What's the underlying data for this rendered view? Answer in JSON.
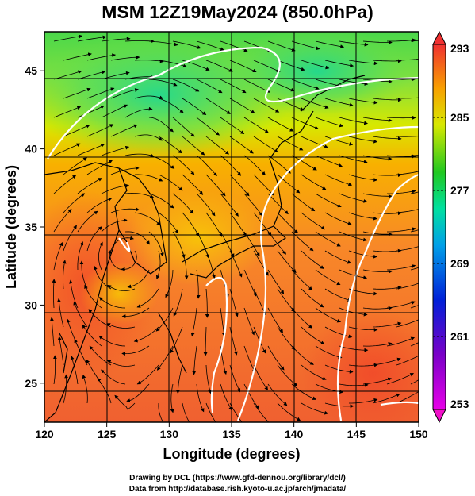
{
  "title": "MSM 12Z19May2024 (850.0hPa)",
  "xaxis": {
    "label": "Longitude (degrees)",
    "ticks": [
      "120",
      "125",
      "130",
      "135",
      "140",
      "145",
      "150"
    ]
  },
  "yaxis": {
    "label": "Latitude  (degrees)",
    "ticks": [
      "25",
      "30",
      "35",
      "40",
      "45"
    ]
  },
  "colorbar": {
    "ticks": [
      "293",
      "285",
      "277",
      "269",
      "261",
      "253"
    ],
    "min": 253,
    "max": 293
  },
  "credits": [
    "Drawing by DCL (https://www.gfd-dennou.org/library/dcl/)",
    "Data from http://database.rish.kyoto-u.ac.jp/arch/jmadata/"
  ],
  "map_extent": {
    "lon": [
      120,
      150
    ],
    "lat": [
      22.5,
      47.5
    ]
  }
}
